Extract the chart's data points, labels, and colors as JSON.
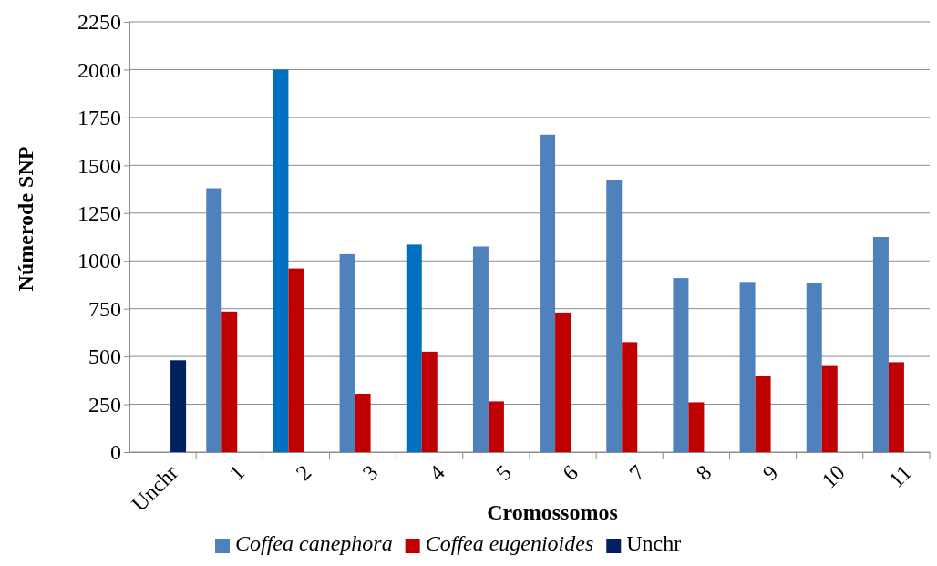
{
  "chart_data": {
    "type": "bar",
    "xlabel": "Cromossomos",
    "ylabel": "Númerode SNP",
    "categories": [
      "Unchr",
      "1",
      "2",
      "3",
      "4",
      "5",
      "6",
      "7",
      "8",
      "9",
      "10",
      "11"
    ],
    "series": [
      {
        "name": "Coffea canephora",
        "color": "#4f81bd",
        "colors": [
          null,
          "#4f81bd",
          "#0070c0",
          "#4f81bd",
          "#0070c0",
          "#4f81bd",
          "#4f81bd",
          "#4f81bd",
          "#4f81bd",
          "#4f81bd",
          "#4f81bd",
          "#4f81bd"
        ],
        "values": [
          null,
          1380,
          2000,
          1035,
          1085,
          1075,
          1660,
          1425,
          910,
          890,
          885,
          1125
        ]
      },
      {
        "name": "Coffea eugenioides",
        "color": "#c00000",
        "values": [
          null,
          735,
          960,
          305,
          525,
          265,
          730,
          575,
          260,
          400,
          450,
          470
        ]
      },
      {
        "name": "Unchr",
        "color": "#002060",
        "values": [
          480,
          null,
          null,
          null,
          null,
          null,
          null,
          null,
          null,
          null,
          null,
          null
        ]
      }
    ],
    "ylim": [
      0,
      2250
    ],
    "yticks": [
      0,
      250,
      500,
      750,
      1000,
      1250,
      1500,
      1750,
      2000,
      2250
    ],
    "grid": "y",
    "legend": "bottom"
  }
}
